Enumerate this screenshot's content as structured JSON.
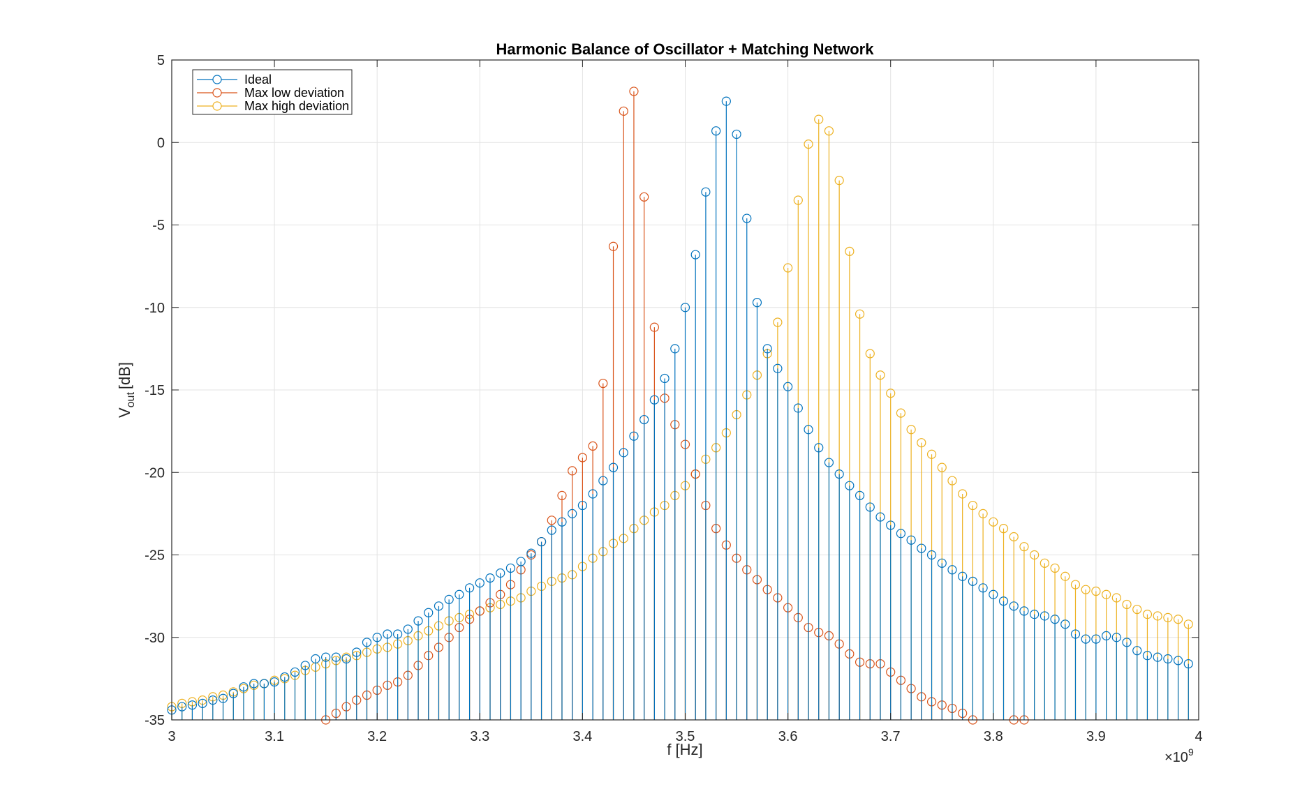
{
  "chart_data": {
    "type": "stem",
    "title": "Harmonic Balance of Oscillator + Matching Network",
    "xlabel": "f [Hz]",
    "ylabel_main": "V",
    "ylabel_sub": "out",
    "ylabel_unit": "[dB]",
    "x_exponent_base": "×10",
    "x_exponent_power": "9",
    "xlim": [
      3.0,
      4.0
    ],
    "ylim": [
      -35,
      5
    ],
    "xticks": [
      3.0,
      3.1,
      3.2,
      3.3,
      3.4,
      3.5,
      3.6,
      3.7,
      3.8,
      3.9,
      4.0
    ],
    "xtick_labels": [
      "3",
      "3.1",
      "3.2",
      "3.3",
      "3.4",
      "3.5",
      "3.6",
      "3.7",
      "3.8",
      "3.9",
      "4"
    ],
    "yticks": [
      5,
      0,
      -5,
      -10,
      -15,
      -20,
      -25,
      -30,
      -35
    ],
    "ytick_labels": [
      "5",
      "0",
      "-5",
      "-10",
      "-15",
      "-20",
      "-25",
      "-30",
      "-35"
    ],
    "grid": true,
    "legend_position": "top-left",
    "baseline": -35,
    "x_step": 0.01,
    "x_start": 3.0,
    "series": [
      {
        "name": "Ideal",
        "color": "#0072BD",
        "values": [
          -34.4,
          -34.2,
          -34.1,
          -34.0,
          -33.8,
          -33.7,
          -33.4,
          -33.0,
          -32.8,
          -32.8,
          -32.7,
          -32.4,
          -32.1,
          -31.7,
          -31.3,
          -31.2,
          -31.2,
          -31.3,
          -30.9,
          -30.3,
          -30.0,
          -29.8,
          -29.8,
          -29.5,
          -29.0,
          -28.5,
          -28.1,
          -27.7,
          -27.4,
          -27.0,
          -26.7,
          -26.4,
          -26.1,
          -25.8,
          -25.4,
          -24.9,
          -24.2,
          -23.5,
          -23.0,
          -22.5,
          -22.0,
          -21.3,
          -20.5,
          -19.7,
          -18.8,
          -17.8,
          -16.8,
          -15.6,
          -14.3,
          -12.5,
          -10.0,
          -6.8,
          -3.0,
          0.7,
          2.5,
          0.5,
          -4.6,
          -9.7,
          -12.5,
          -13.7,
          -14.8,
          -16.1,
          -17.4,
          -18.5,
          -19.4,
          -20.1,
          -20.8,
          -21.4,
          -22.1,
          -22.7,
          -23.2,
          -23.7,
          -24.1,
          -24.6,
          -25.0,
          -25.5,
          -25.9,
          -26.3,
          -26.6,
          -27.0,
          -27.4,
          -27.8,
          -28.1,
          -28.4,
          -28.6,
          -28.7,
          -28.9,
          -29.2,
          -29.8,
          -30.1,
          -30.1,
          -29.9,
          -30.0,
          -30.3,
          -30.8,
          -31.1,
          -31.2,
          -31.3,
          -31.4,
          -31.6
        ]
      },
      {
        "name": "Max low deviation",
        "color": "#D95319",
        "values": [
          null,
          null,
          null,
          null,
          null,
          null,
          null,
          null,
          null,
          null,
          null,
          null,
          null,
          null,
          null,
          -35.0,
          -34.6,
          -34.2,
          -33.8,
          -33.5,
          -33.2,
          -32.9,
          -32.7,
          -32.3,
          -31.7,
          -31.1,
          -30.6,
          -30.0,
          -29.4,
          -28.9,
          -28.4,
          -27.9,
          -27.4,
          -26.8,
          -25.9,
          -25.0,
          -24.2,
          -22.9,
          -21.4,
          -19.9,
          -19.1,
          -18.4,
          -14.6,
          -6.3,
          1.9,
          3.1,
          -3.3,
          -11.2,
          -15.5,
          -17.1,
          -18.3,
          -20.1,
          -22.0,
          -23.4,
          -24.4,
          -25.2,
          -25.9,
          -26.5,
          -27.1,
          -27.6,
          -28.2,
          -28.8,
          -29.4,
          -29.7,
          -29.9,
          -30.4,
          -31.0,
          -31.5,
          -31.6,
          -31.6,
          -32.1,
          -32.6,
          -33.1,
          -33.6,
          -33.9,
          -34.1,
          -34.3,
          -34.6,
          -35.0,
          null,
          null,
          null,
          -35.0,
          -35.0,
          null,
          null,
          null,
          null,
          null,
          null,
          null,
          null,
          null,
          null,
          null,
          null,
          null,
          null,
          null,
          null
        ]
      },
      {
        "name": "Max high deviation",
        "color": "#EDB120",
        "values": [
          -34.2,
          -34.0,
          -33.9,
          -33.8,
          -33.6,
          -33.5,
          -33.3,
          -33.1,
          -32.9,
          -32.8,
          -32.6,
          -32.5,
          -32.3,
          -32.0,
          -31.8,
          -31.6,
          -31.4,
          -31.2,
          -31.1,
          -30.9,
          -30.7,
          -30.6,
          -30.4,
          -30.2,
          -29.9,
          -29.6,
          -29.3,
          -29.0,
          -28.8,
          -28.6,
          -28.4,
          -28.2,
          -28.0,
          -27.8,
          -27.6,
          -27.2,
          -26.9,
          -26.6,
          -26.4,
          -26.2,
          -25.7,
          -25.2,
          -24.8,
          -24.3,
          -24.0,
          -23.4,
          -22.9,
          -22.4,
          -22.0,
          -21.4,
          -20.8,
          -20.1,
          -19.2,
          -18.5,
          -17.6,
          -16.5,
          -15.3,
          -14.1,
          -12.8,
          -10.9,
          -7.6,
          -3.5,
          -0.1,
          1.4,
          0.7,
          -2.3,
          -6.6,
          -10.4,
          -12.8,
          -14.1,
          -15.2,
          -16.4,
          -17.4,
          -18.2,
          -18.9,
          -19.7,
          -20.5,
          -21.3,
          -22.0,
          -22.5,
          -23.0,
          -23.4,
          -23.9,
          -24.5,
          -25.0,
          -25.5,
          -25.8,
          -26.3,
          -26.8,
          -27.1,
          -27.2,
          -27.4,
          -27.6,
          -28.0,
          -28.3,
          -28.6,
          -28.7,
          -28.8,
          -28.9,
          -29.2
        ]
      }
    ]
  }
}
